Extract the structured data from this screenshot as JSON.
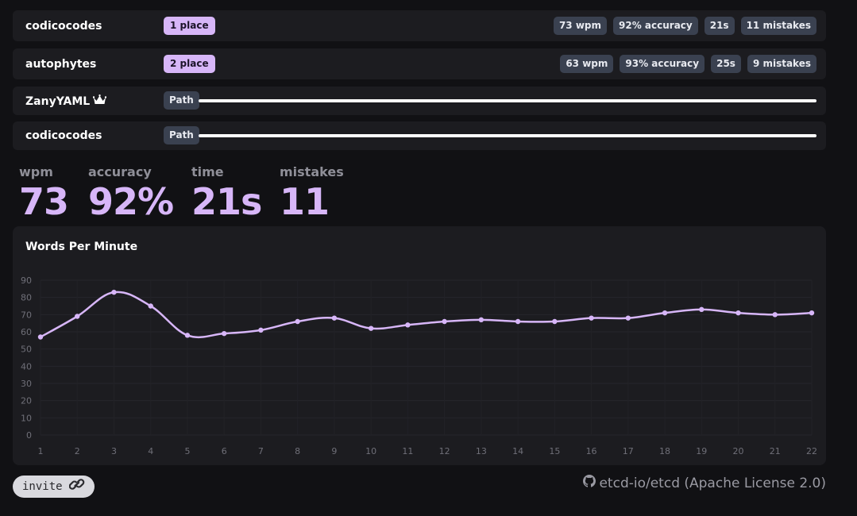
{
  "results": [
    {
      "name": "codicocodes",
      "place": "1 place",
      "stats": [
        "73 wpm",
        "92% accuracy",
        "21s",
        "11 mistakes"
      ]
    },
    {
      "name": "autophytes",
      "place": "2 place",
      "stats": [
        "63 wpm",
        "93% accuracy",
        "25s",
        "9 mistakes"
      ]
    }
  ],
  "racers": [
    {
      "name": "ZanyYAML",
      "badge": "Path",
      "progress": 1.0,
      "crown_icon": "crown-icon"
    },
    {
      "name": "codicocodes",
      "badge": "Path",
      "progress": 1.0
    }
  ],
  "summary": {
    "wpm_label": "wpm",
    "wpm": "73",
    "accuracy_label": "accuracy",
    "accuracy": "92%",
    "time_label": "time",
    "time": "21s",
    "mistakes_label": "mistakes",
    "mistakes": "11"
  },
  "chart_data": {
    "type": "line",
    "title": "Words Per Minute",
    "x": [
      1,
      2,
      3,
      4,
      5,
      6,
      7,
      8,
      9,
      10,
      11,
      12,
      13,
      14,
      15,
      16,
      17,
      18,
      19,
      20,
      21,
      22
    ],
    "series": [
      {
        "values": [
          57,
          69,
          83,
          75,
          58,
          59,
          61,
          66,
          68,
          62,
          64,
          66,
          67,
          66,
          66,
          68,
          68,
          71,
          73,
          71,
          70,
          71
        ]
      }
    ],
    "ylim": [
      0,
      90
    ],
    "yticks": [
      0,
      10,
      20,
      30,
      40,
      50,
      60,
      70,
      80,
      90
    ],
    "line_color": "#d7b6f8",
    "grid": true
  },
  "footer": {
    "invite_label": "invite",
    "link_icon": "link-icon",
    "repo_icon": "github-icon",
    "license_text": "etcd-io/etcd (Apache License 2.0)"
  },
  "colors": {
    "accent": "#d7b6f8",
    "badge": "#3a4150",
    "card": "#1c1c20",
    "background": "#111114"
  }
}
